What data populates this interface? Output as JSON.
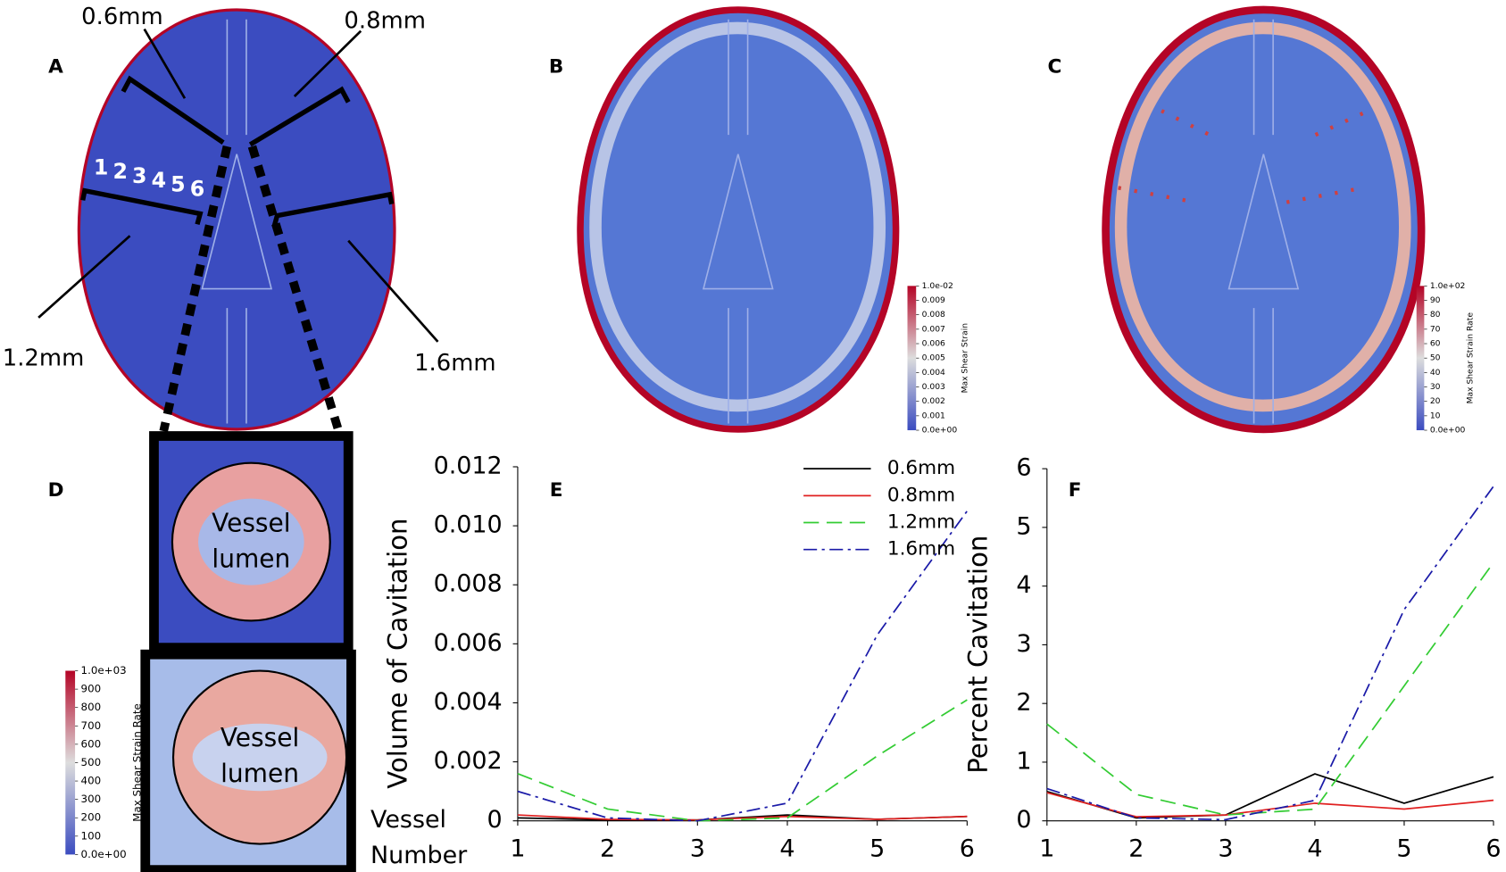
{
  "panels": [
    "A",
    "B",
    "C",
    "D",
    "E",
    "F"
  ],
  "figure_a": {
    "sizes": [
      "0.6mm",
      "0.8mm",
      "1.2mm",
      "1.6mm"
    ],
    "vessel_numbers": [
      "1",
      "2",
      "3",
      "4",
      "5",
      "6"
    ]
  },
  "vessel_labels": [
    [
      "Vessel",
      "lumen"
    ],
    [
      "Vessel",
      "lumen"
    ]
  ],
  "colorbars": [
    {
      "title": "Max Shear Strain",
      "ticks": [
        "1.0e-02",
        "0.009",
        "0.008",
        "0.007",
        "0.006",
        "0.005",
        "0.004",
        "0.003",
        "0.002",
        "0.001",
        "0.0e+00"
      ]
    },
    {
      "title": "Max Shear Strain Rate",
      "ticks": [
        "1.0e+02",
        "90",
        "80",
        "70",
        "60",
        "50",
        "40",
        "30",
        "20",
        "10",
        "0.0e+00"
      ]
    },
    {
      "title": "Max Shear Strain Rate",
      "ticks": [
        "1.0e+03",
        "900",
        "800",
        "700",
        "600",
        "500",
        "400",
        "300",
        "200",
        "100",
        "0.0e+00"
      ]
    }
  ],
  "chart_data": [
    {
      "type": "line",
      "ylabel": "Volume of Cavitation",
      "xlabel": [
        "Vessel",
        "Number"
      ],
      "x": [
        1,
        2,
        3,
        4,
        5,
        6
      ],
      "xlim": [
        1,
        6
      ],
      "xticks": [
        1,
        2,
        3,
        4,
        5,
        6
      ],
      "ylim": [
        0,
        0.012
      ],
      "yticks": [
        0,
        0.002,
        0.004,
        0.006,
        0.008,
        {
          "value": 0.01,
          "label": "0.010"
        },
        0.012
      ],
      "legend": "upper right",
      "series": [
        {
          "name": "0.6mm",
          "color": "#000000",
          "linestyle": "solid",
          "values": [
            0.0001,
            3e-05,
            3e-05,
            0.0002,
            5e-05,
            0.00015
          ]
        },
        {
          "name": "0.8mm",
          "color": "#e02020",
          "linestyle": "solid",
          "values": [
            0.0002,
            5e-05,
            3e-05,
            0.00015,
            5e-05,
            0.00015
          ]
        },
        {
          "name": "1.2mm",
          "color": "#33cc33",
          "linestyle": "dashed",
          "values": [
            0.0016,
            0.0004,
            0.0,
            0.0001,
            0.0022,
            0.0041
          ]
        },
        {
          "name": "1.6mm",
          "color": "#1a1aa8",
          "linestyle": "dashdot",
          "values": [
            0.001,
            0.0001,
            0.0,
            0.0006,
            0.0063,
            0.0105
          ]
        }
      ]
    },
    {
      "type": "line",
      "ylabel": "Percent Cavitation",
      "x": [
        1,
        2,
        3,
        4,
        5,
        6
      ],
      "xlim": [
        1,
        6
      ],
      "xticks": [
        1,
        2,
        3,
        4,
        5,
        6
      ],
      "ylim": [
        0,
        6
      ],
      "yticks": [
        0,
        1,
        2,
        3,
        4,
        5,
        6
      ],
      "legend": false,
      "series": [
        {
          "name": "0.6mm",
          "color": "#000000",
          "linestyle": "solid",
          "values": [
            0.5,
            0.05,
            0.1,
            0.8,
            0.3,
            0.75
          ]
        },
        {
          "name": "0.8mm",
          "color": "#e02020",
          "linestyle": "solid",
          "values": [
            0.48,
            0.07,
            0.1,
            0.3,
            0.2,
            0.35
          ]
        },
        {
          "name": "1.2mm",
          "color": "#33cc33",
          "linestyle": "dashed",
          "values": [
            1.65,
            0.45,
            0.1,
            0.2,
            2.3,
            4.4
          ]
        },
        {
          "name": "1.6mm",
          "color": "#1a1aa8",
          "linestyle": "dashdot",
          "values": [
            0.55,
            0.05,
            0.02,
            0.35,
            3.6,
            5.7
          ]
        }
      ]
    }
  ]
}
